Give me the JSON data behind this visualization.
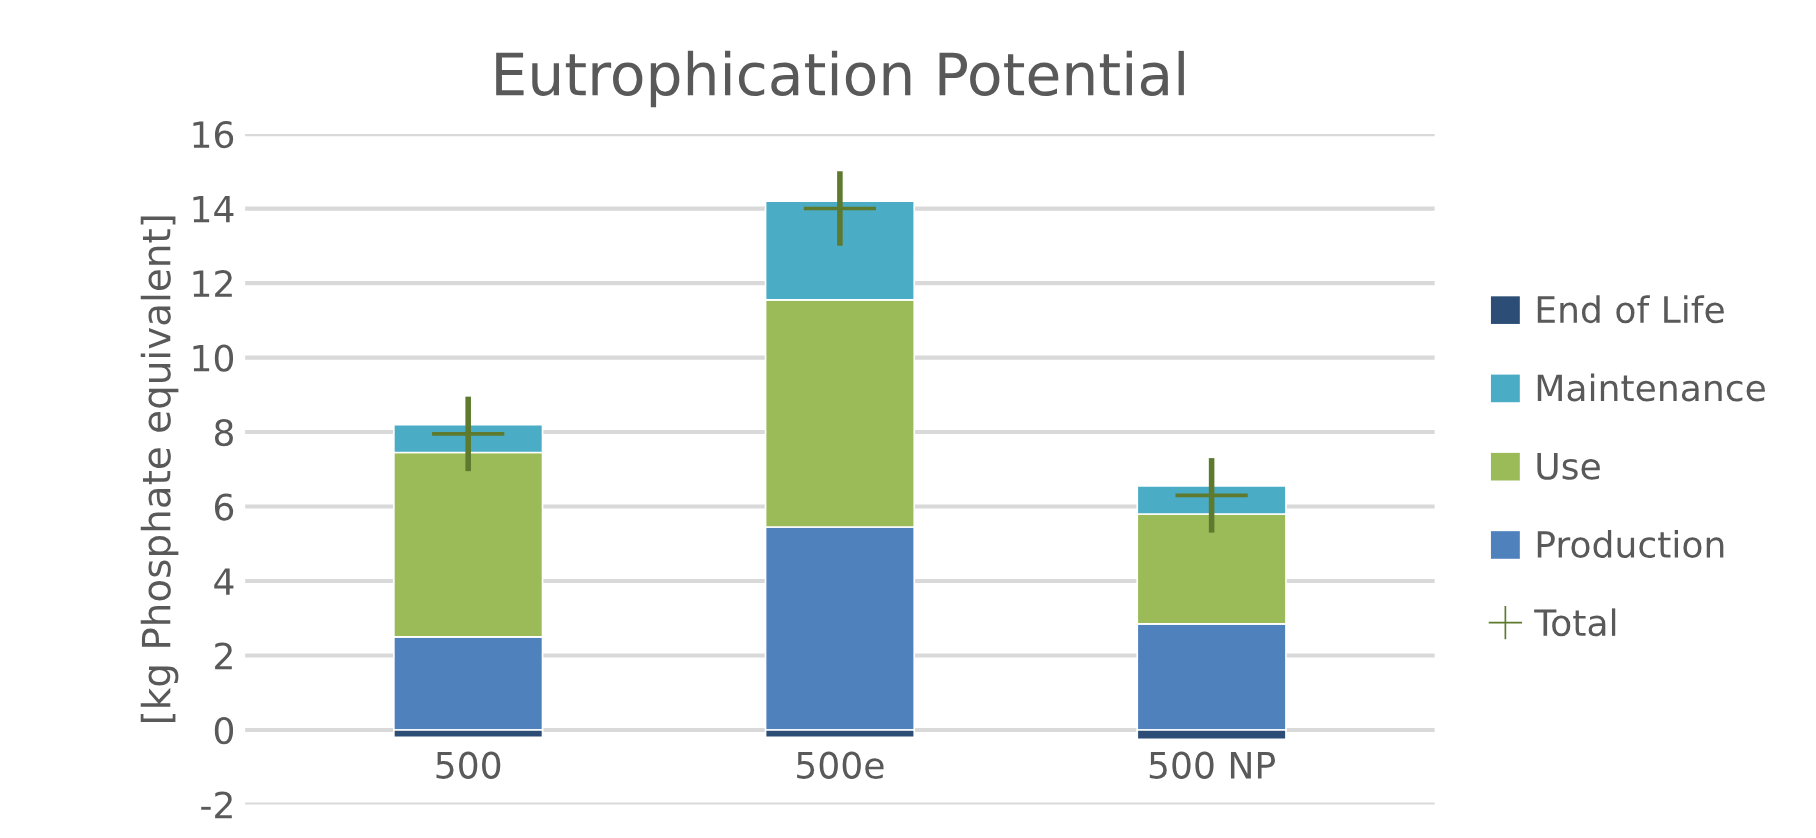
{
  "chart_data": {
    "type": "bar",
    "title": "Eutrophication Potential",
    "ylabel": "[kg Phosphate equivalent]",
    "categories": [
      "500",
      "500e",
      "500 NP"
    ],
    "stacked": true,
    "series": [
      {
        "name": "Production",
        "color": "#4f81bd",
        "values": [
          2.5,
          5.45,
          2.85
        ]
      },
      {
        "name": "Use",
        "color": "#9bbb59",
        "values": [
          4.95,
          6.1,
          2.95
        ]
      },
      {
        "name": "Maintenance",
        "color": "#4bacc6",
        "values": [
          0.75,
          2.65,
          0.75
        ]
      },
      {
        "name": "End of Life",
        "color": "#2c4d75",
        "values": [
          -0.2,
          -0.2,
          -0.25
        ]
      },
      {
        "name": "Total",
        "type": "scatter",
        "marker": "cross",
        "color": "#5e7a2e",
        "values": [
          7.95,
          14.0,
          6.3
        ],
        "errors": [
          1,
          1,
          1
        ]
      }
    ],
    "ylim": [
      -2,
      16
    ],
    "yticks": [
      -2,
      0,
      2,
      4,
      6,
      8,
      10,
      12,
      14,
      16
    ],
    "grid": "y",
    "legend": "right"
  }
}
